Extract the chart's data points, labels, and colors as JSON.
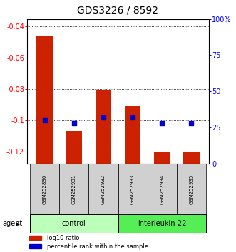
{
  "title": "GDS3226 / 8592",
  "samples": [
    "GSM252890",
    "GSM252931",
    "GSM252932",
    "GSM252933",
    "GSM252934",
    "GSM252935"
  ],
  "log10_ratio": [
    -0.046,
    -0.107,
    -0.081,
    -0.091,
    -0.12,
    -0.12
  ],
  "percentile_rank_pct": [
    30,
    28,
    32,
    32,
    28,
    28
  ],
  "ylim_left": [
    -0.128,
    -0.035
  ],
  "yticks_left": [
    -0.12,
    -0.1,
    -0.08,
    -0.06,
    -0.04
  ],
  "yticks_right": [
    0,
    25,
    50,
    75,
    100
  ],
  "ylim_right": [
    0,
    100
  ],
  "groups": [
    {
      "label": "control",
      "indices": [
        0,
        1,
        2
      ],
      "color": "#bbffbb"
    },
    {
      "label": "interleukin-22",
      "indices": [
        3,
        4,
        5
      ],
      "color": "#55ee55"
    }
  ],
  "bar_color": "#cc2200",
  "dot_color": "#0000cc",
  "bar_width": 0.55,
  "title_fontsize": 10,
  "tick_fontsize": 7,
  "sample_fontsize": 5,
  "group_fontsize": 7,
  "legend_fontsize": 6,
  "agent_fontsize": 7
}
